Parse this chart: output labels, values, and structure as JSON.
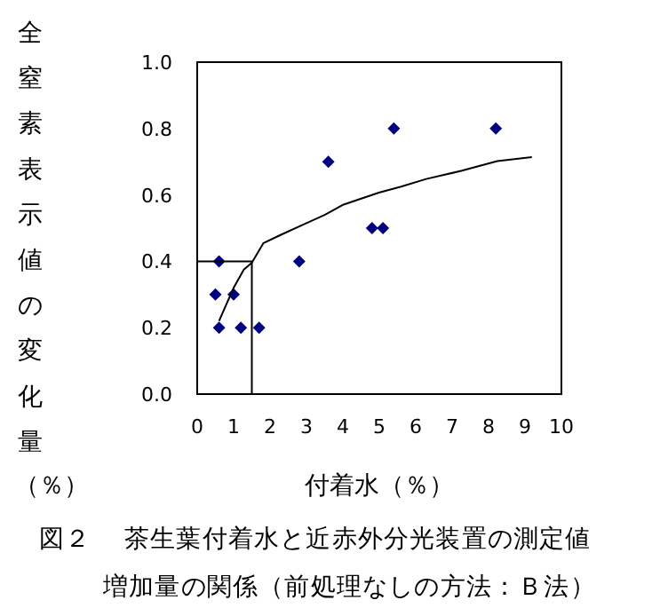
{
  "chart_data": {
    "type": "scatter",
    "xlabel": "付着水（％）",
    "ylabel": "全窒素表示値の変化量（％）",
    "annotations": [
      "図２",
      "茶生葉付着水と近赤外分光装置の測定値",
      "増加量の関係（前処理なしの方法：Ｂ法）"
    ],
    "xlim": [
      0,
      10
    ],
    "ylim": [
      0,
      1
    ],
    "xticks": [
      0,
      1,
      2,
      3,
      4,
      5,
      6,
      7,
      8,
      9,
      10
    ],
    "yticks": [
      {
        "value": 0,
        "label": "0.0"
      },
      {
        "value": 0.2,
        "label": "0.2"
      },
      {
        "value": 0.4,
        "label": "0.4"
      },
      {
        "value": 0.6,
        "label": "0.6"
      },
      {
        "value": 0.8,
        "label": "0.8"
      },
      {
        "value": 1,
        "label": "1.0"
      }
    ],
    "grid": false,
    "series": [
      {
        "marker": "diamond",
        "color": "#000080",
        "x": [
          0.6,
          0.5,
          1.0,
          0.6,
          1.2,
          1.7,
          2.8,
          3.6,
          4.8,
          5.1,
          5.4,
          8.2
        ],
        "values": [
          0.4,
          0.3,
          0.3,
          0.2,
          0.2,
          0.2,
          0.4,
          0.7,
          0.5,
          0.5,
          0.8,
          0.8
        ]
      },
      {
        "type": "line",
        "marker": "none",
        "color": "#000000",
        "x": [
          0.6,
          1.0,
          1.28,
          1.5,
          1.82,
          2.3,
          2.88,
          3.5,
          4.02,
          4.99,
          5.6,
          6.29,
          7.27,
          8.24,
          9.19
        ],
        "values": [
          0.22,
          0.32,
          0.375,
          0.396,
          0.455,
          0.48,
          0.509,
          0.54,
          0.571,
          0.607,
          0.625,
          0.648,
          0.673,
          0.702,
          0.714
        ]
      },
      {
        "type": "line",
        "marker": "none",
        "color": "#000000",
        "x": [
          0,
          1.5,
          1.5
        ],
        "values": [
          0.4,
          0.4,
          0
        ]
      }
    ]
  }
}
